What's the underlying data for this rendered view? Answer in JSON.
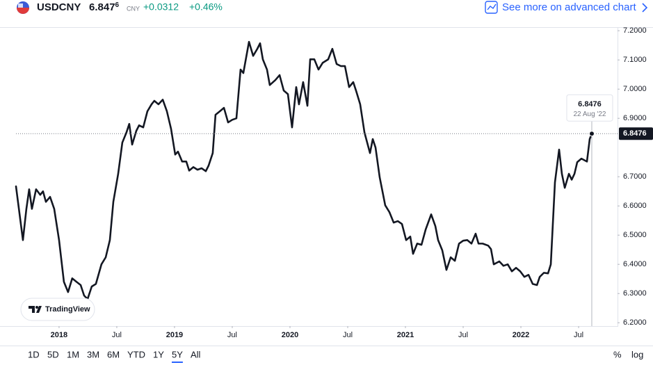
{
  "header": {
    "symbol": "USDCNY",
    "price_main": "6.847",
    "price_pip": "6",
    "currency": "CNY",
    "change": "+0.0312",
    "change_pct": "+0.46%",
    "link": "See more on advanced chart"
  },
  "chart_data": {
    "type": "line",
    "x": [
      2017.627,
      2017.687,
      2017.717,
      2017.741,
      2017.765,
      2017.801,
      2017.837,
      2017.861,
      2017.886,
      2017.922,
      2017.958,
      2018,
      2018.042,
      2018.078,
      2018.114,
      2018.151,
      2018.187,
      2018.217,
      2018.247,
      2018.283,
      2018.319,
      2018.367,
      2018.404,
      2018.44,
      2018.47,
      2018.512,
      2018.548,
      2018.584,
      2018.608,
      2018.633,
      2018.669,
      2018.693,
      2018.729,
      2018.765,
      2018.801,
      2018.825,
      2018.861,
      2018.898,
      2018.934,
      2018.97,
      2019.006,
      2019.03,
      2019.066,
      2019.102,
      2019.127,
      2019.163,
      2019.199,
      2019.235,
      2019.271,
      2019.295,
      2019.331,
      2019.355,
      2019.392,
      2019.428,
      2019.464,
      2019.5,
      2019.536,
      2019.572,
      2019.596,
      2019.645,
      2019.681,
      2019.717,
      2019.741,
      2019.765,
      2019.801,
      2019.825,
      2019.873,
      2019.91,
      2019.946,
      2019.982,
      2020.018,
      2020.054,
      2020.078,
      2020.114,
      2020.151,
      2020.175,
      2020.211,
      2020.247,
      2020.283,
      2020.331,
      2020.367,
      2020.404,
      2020.44,
      2020.476,
      2020.512,
      2020.548,
      2020.572,
      2020.608,
      2020.645,
      2020.693,
      2020.717,
      2020.741,
      2020.777,
      2020.825,
      2020.861,
      2020.898,
      2020.934,
      2020.97,
      2021.006,
      2021.042,
      2021.066,
      2021.102,
      2021.139,
      2021.175,
      2021.223,
      2021.259,
      2021.283,
      2021.319,
      2021.355,
      2021.392,
      2021.428,
      2021.464,
      2021.5,
      2021.536,
      2021.572,
      2021.608,
      2021.633,
      2021.669,
      2021.717,
      2021.741,
      2021.765,
      2021.813,
      2021.849,
      2021.886,
      2021.922,
      2021.958,
      2021.994,
      2022.03,
      2022.066,
      2022.102,
      2022.139,
      2022.163,
      2022.199,
      2022.235,
      2022.259,
      2022.295,
      2022.331,
      2022.355,
      2022.38,
      2022.416,
      2022.44,
      2022.464,
      2022.488,
      2022.524,
      2022.572,
      2022.596,
      2022.614
    ],
    "series": [
      {
        "name": "USDCNY",
        "color": "#131722",
        "values": [
          6.667,
          6.483,
          6.59,
          6.657,
          6.59,
          6.657,
          6.638,
          6.65,
          6.614,
          6.631,
          6.59,
          6.483,
          6.34,
          6.305,
          6.352,
          6.34,
          6.329,
          6.293,
          6.281,
          6.324,
          6.333,
          6.4,
          6.424,
          6.483,
          6.614,
          6.71,
          6.817,
          6.852,
          6.881,
          6.81,
          6.857,
          6.876,
          6.869,
          6.924,
          6.948,
          6.96,
          6.948,
          6.964,
          6.924,
          6.864,
          6.776,
          6.786,
          6.752,
          6.752,
          6.721,
          6.733,
          6.724,
          6.729,
          6.719,
          6.738,
          6.781,
          6.912,
          6.924,
          6.936,
          6.886,
          6.895,
          6.9,
          7.067,
          7.055,
          7.162,
          7.114,
          7.138,
          7.157,
          7.102,
          7.067,
          7.014,
          7.031,
          7.048,
          6.995,
          6.983,
          6.869,
          7.007,
          6.948,
          7.024,
          6.943,
          7.102,
          7.102,
          7.067,
          7.09,
          7.102,
          7.138,
          7.086,
          7.079,
          7.079,
          7.007,
          7.024,
          6.995,
          6.948,
          6.852,
          6.781,
          6.829,
          6.8,
          6.698,
          6.602,
          6.579,
          6.543,
          6.548,
          6.538,
          6.483,
          6.495,
          6.436,
          6.471,
          6.467,
          6.519,
          6.571,
          6.531,
          6.483,
          6.448,
          6.381,
          6.424,
          6.412,
          6.471,
          6.481,
          6.483,
          6.471,
          6.505,
          6.471,
          6.471,
          6.464,
          6.452,
          6.4,
          6.41,
          6.395,
          6.4,
          6.376,
          6.388,
          6.376,
          6.357,
          6.364,
          6.333,
          6.329,
          6.357,
          6.371,
          6.369,
          6.4,
          6.681,
          6.793,
          6.71,
          6.662,
          6.71,
          6.69,
          6.71,
          6.75,
          6.762,
          6.752,
          6.829,
          6.8476
        ]
      }
    ],
    "xlim": [
      2017.627,
      2022.837
    ],
    "xticks": [
      2018,
      {
        "value": 2018.5,
        "label": "Jul"
      },
      2019,
      {
        "value": 2019.5,
        "label": "Jul"
      },
      2020,
      {
        "value": 2020.5,
        "label": "Jul"
      },
      2021,
      {
        "value": 2021.5,
        "label": "Jul"
      },
      2022,
      {
        "value": 2022.5,
        "label": "Jul"
      }
    ],
    "ylim": [
      6.19,
      7.21
    ],
    "yticks": [
      {
        "value": 7.2,
        "label": "7.2000"
      },
      {
        "value": 7.1,
        "label": "7.1000"
      },
      {
        "value": 7.0,
        "label": "7.0000"
      },
      {
        "value": 6.9,
        "label": "6.9000"
      },
      {
        "value": 6.7,
        "label": "6.7000"
      },
      {
        "value": 6.6,
        "label": "6.6000"
      },
      {
        "value": 6.5,
        "label": "6.5000"
      },
      {
        "value": 6.4,
        "label": "6.4000"
      },
      {
        "value": 6.3,
        "label": "6.3000"
      },
      {
        "value": 6.2,
        "label": "6.2000"
      }
    ],
    "grid": false,
    "tooltip_date": "22 Aug '22",
    "watermark": "TradingView"
  },
  "range_buttons": [
    "1D",
    "5D",
    "1M",
    "3M",
    "6M",
    "YTD",
    "1Y",
    "5Y",
    "All"
  ],
  "active_range": 7,
  "scale_buttons": [
    "%",
    "log"
  ]
}
